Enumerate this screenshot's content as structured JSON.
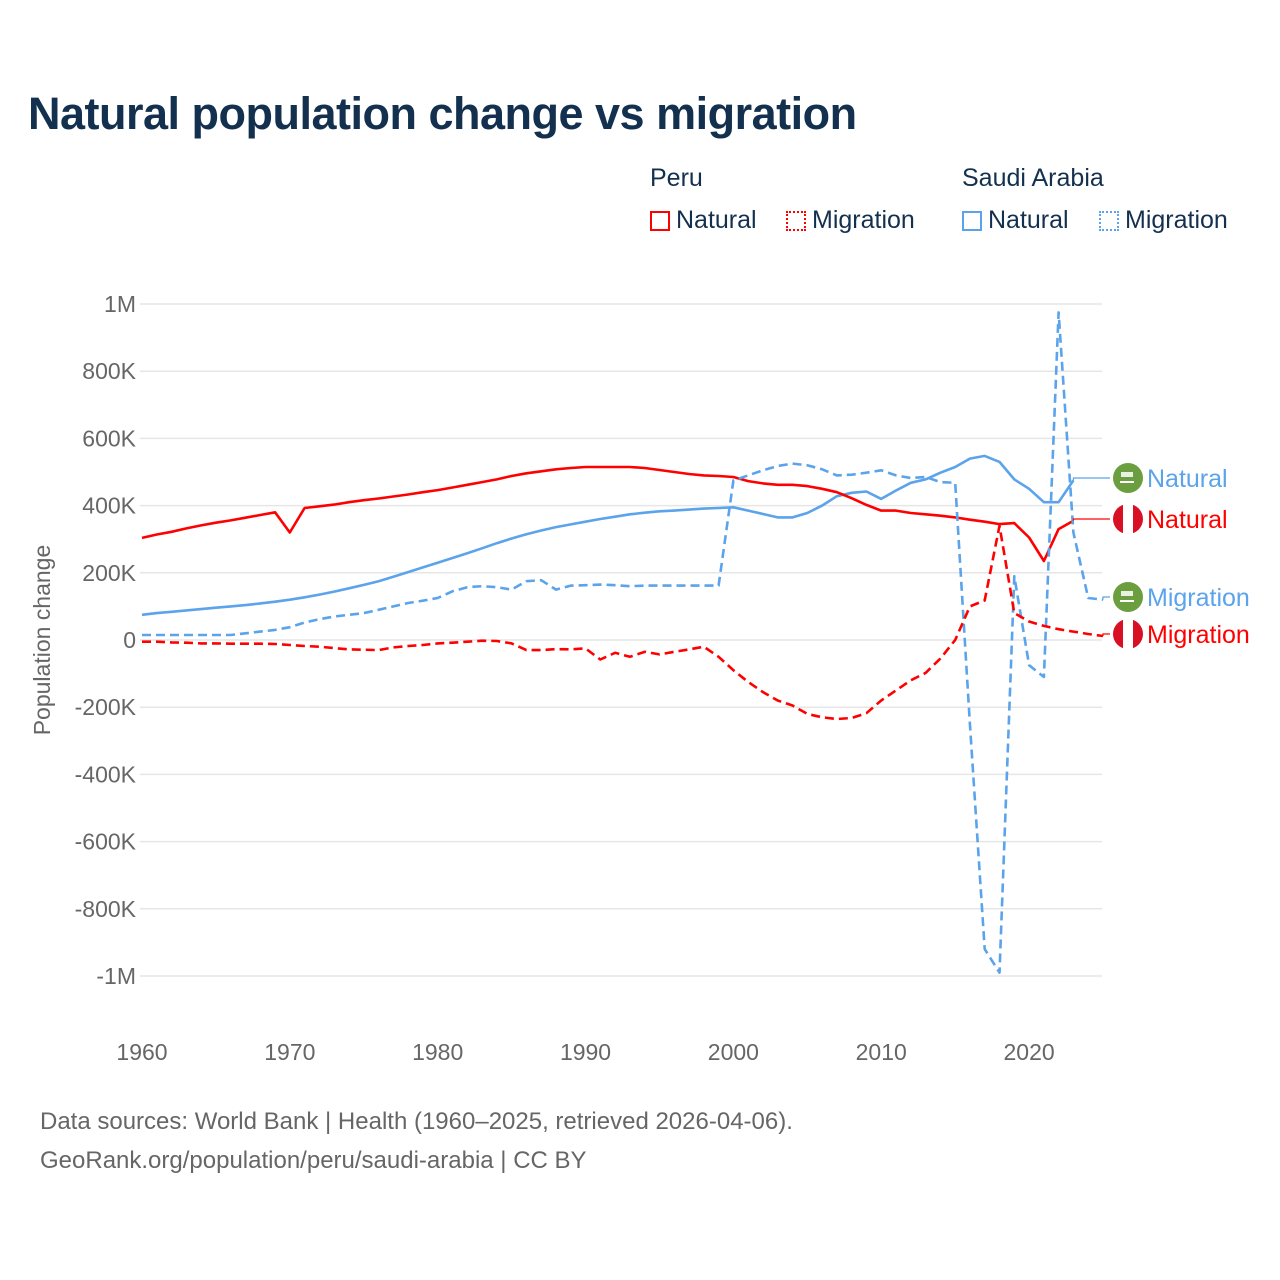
{
  "chart_data": {
    "type": "line",
    "title": "Natural population change vs migration",
    "ylabel": "Population change",
    "xlabel": "",
    "ylim": [
      -1000000,
      1000000
    ],
    "xlim": [
      1960,
      2025
    ],
    "grid": true,
    "yticks": [
      {
        "v": 1000000,
        "label": "1M"
      },
      {
        "v": 800000,
        "label": "800K"
      },
      {
        "v": 600000,
        "label": "600K"
      },
      {
        "v": 400000,
        "label": "400K"
      },
      {
        "v": 200000,
        "label": "200K"
      },
      {
        "v": 0,
        "label": "0"
      },
      {
        "v": -200000,
        "label": "-200K"
      },
      {
        "v": -400000,
        "label": "-400K"
      },
      {
        "v": -600000,
        "label": "-600K"
      },
      {
        "v": -800000,
        "label": "-800K"
      },
      {
        "v": -1000000,
        "label": "-1M"
      }
    ],
    "xticks": [
      {
        "v": 1960,
        "label": "1960"
      },
      {
        "v": 1970,
        "label": "1970"
      },
      {
        "v": 1980,
        "label": "1980"
      },
      {
        "v": 1990,
        "label": "1990"
      },
      {
        "v": 2000,
        "label": "2000"
      },
      {
        "v": 2010,
        "label": "2010"
      },
      {
        "v": 2020,
        "label": "2020"
      }
    ],
    "legend": {
      "placement": "top-right",
      "groups": [
        {
          "country": "Peru",
          "items": [
            "Natural",
            "Migration"
          ]
        },
        {
          "country": "Saudi Arabia",
          "items": [
            "Natural",
            "Migration"
          ]
        }
      ]
    },
    "series": [
      {
        "name": "Peru Natural",
        "country": "Peru",
        "kind": "Natural",
        "color": "#ff0000",
        "dashed": false,
        "end_label": "Natural",
        "start": 1960,
        "values": [
          304000,
          314000,
          322000,
          332000,
          341000,
          349000,
          356000,
          364000,
          372000,
          380000,
          320000,
          393000,
          398000,
          403000,
          410000,
          416000,
          421000,
          427000,
          433000,
          440000,
          446000,
          454000,
          462000,
          470000,
          478000,
          488000,
          496000,
          502000,
          508000,
          512000,
          515000,
          515000,
          515000,
          515000,
          512000,
          506000,
          500000,
          494000,
          490000,
          488000,
          485000,
          473000,
          466000,
          462000,
          462000,
          458000,
          450000,
          440000,
          422000,
          402000,
          385000,
          385000,
          378000,
          374000,
          370000,
          365000,
          358000,
          352000,
          345000,
          348000,
          305000,
          235000,
          330000,
          355000
        ]
      },
      {
        "name": "Peru Migration",
        "country": "Peru",
        "kind": "Migration",
        "color": "#ff0000",
        "dashed": true,
        "end_label": "Migration",
        "start": 1960,
        "values": [
          -5000,
          -5000,
          -7000,
          -8000,
          -10000,
          -10000,
          -11000,
          -11000,
          -11000,
          -12000,
          -15000,
          -18000,
          -20000,
          -24000,
          -28000,
          -29000,
          -30000,
          -22000,
          -18000,
          -15000,
          -10000,
          -8000,
          -5000,
          -2000,
          -3000,
          -10000,
          -30000,
          -30000,
          -27000,
          -28000,
          -25000,
          -58000,
          -38000,
          -50000,
          -35000,
          -43000,
          -35000,
          -28000,
          -20000,
          -50000,
          -90000,
          -125000,
          -155000,
          -180000,
          -195000,
          -220000,
          -230000,
          -235000,
          -232000,
          -218000,
          -180000,
          -150000,
          -120000,
          -98000,
          -55000,
          0,
          100000,
          118000,
          340000,
          80000,
          55000,
          42000,
          32000,
          25000,
          18000,
          12000
        ]
      },
      {
        "name": "Saudi Arabia Natural",
        "country": "Saudi Arabia",
        "kind": "Natural",
        "color": "#5ba3ea",
        "dashed": false,
        "end_label": "Natural",
        "start": 1960,
        "values": [
          75000,
          80000,
          84000,
          88000,
          92000,
          96000,
          100000,
          104000,
          109000,
          114000,
          120000,
          127000,
          135000,
          144000,
          154000,
          164000,
          175000,
          188000,
          202000,
          216000,
          230000,
          244000,
          258000,
          273000,
          288000,
          302000,
          315000,
          326000,
          336000,
          344000,
          352000,
          360000,
          367000,
          374000,
          379000,
          383000,
          385000,
          388000,
          391000,
          393000,
          395000,
          385000,
          375000,
          365000,
          365000,
          378000,
          400000,
          428000,
          438000,
          442000,
          420000,
          445000,
          468000,
          478000,
          498000,
          515000,
          540000,
          548000,
          530000,
          478000,
          450000,
          410000,
          410000,
          475000
        ]
      },
      {
        "name": "Saudi Arabia Migration",
        "country": "Saudi Arabia",
        "kind": "Migration",
        "color": "#5ba3ea",
        "dashed": true,
        "end_label": "Migration",
        "start": 1960,
        "values": [
          15000,
          15000,
          15000,
          15000,
          15000,
          15000,
          15000,
          20000,
          25000,
          30000,
          38000,
          52000,
          62000,
          70000,
          75000,
          80000,
          90000,
          100000,
          110000,
          117000,
          125000,
          145000,
          157000,
          160000,
          157000,
          150000,
          175000,
          178000,
          150000,
          162000,
          163000,
          165000,
          163000,
          160000,
          162000,
          162000,
          162000,
          162000,
          162000,
          162000,
          475000,
          490000,
          505000,
          518000,
          525000,
          520000,
          508000,
          490000,
          492000,
          498000,
          505000,
          490000,
          482000,
          485000,
          470000,
          468000,
          -250000,
          -920000,
          -990000,
          190000,
          -75000,
          -110000,
          975000,
          320000,
          125000,
          120000
        ]
      }
    ]
  },
  "footer": {
    "line1": "Data sources: World Bank | Health (1960–2025, retrieved 2026-04-06).",
    "line2": "GeoRank.org/population/peru/saudi-arabia | CC BY"
  }
}
